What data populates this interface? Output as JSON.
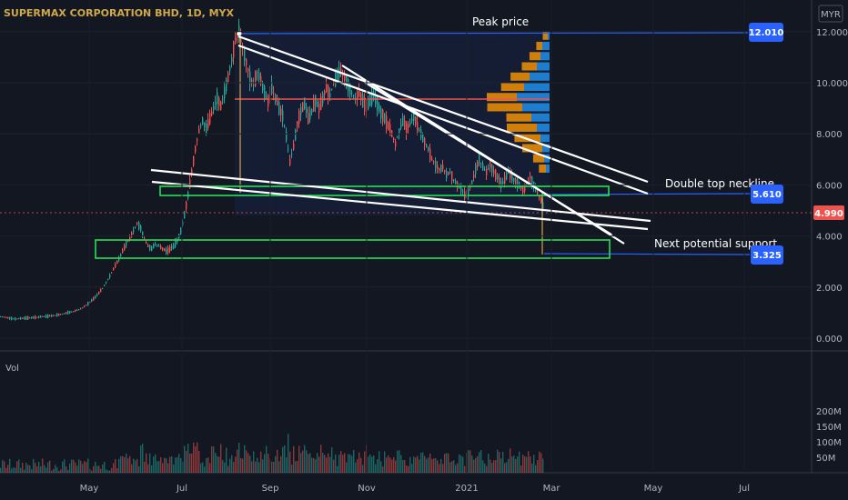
{
  "chart_data": [
    {
      "type": "candlestick",
      "title": "SUPERMAX CORPORATION BHD, 1D, MYX",
      "currency": "MYR",
      "y_ticks": [
        "0.000",
        "2.000",
        "4.000",
        "6.000",
        "8.000",
        "10.000",
        "12.000"
      ],
      "x_ticks": [
        "May",
        "Jul",
        "Sep",
        "Nov",
        "2021",
        "Mar",
        "May",
        "Jul"
      ],
      "ylim": [
        -0.2,
        13.0
      ],
      "price_path": [
        [
          0,
          0.85
        ],
        [
          8,
          0.8
        ],
        [
          16,
          0.75
        ],
        [
          24,
          0.78
        ],
        [
          32,
          0.8
        ],
        [
          40,
          0.82
        ],
        [
          48,
          0.85
        ],
        [
          56,
          0.88
        ],
        [
          64,
          0.92
        ],
        [
          72,
          0.98
        ],
        [
          80,
          1.05
        ],
        [
          88,
          1.15
        ],
        [
          96,
          1.35
        ],
        [
          104,
          1.6
        ],
        [
          112,
          1.95
        ],
        [
          118,
          2.3
        ],
        [
          124,
          2.7
        ],
        [
          130,
          3.1
        ],
        [
          134,
          3.4
        ],
        [
          138,
          3.7
        ],
        [
          142,
          3.9
        ],
        [
          146,
          4.2
        ],
        [
          150,
          4.5
        ],
        [
          154,
          4.3
        ],
        [
          158,
          3.9
        ],
        [
          162,
          3.6
        ],
        [
          166,
          3.5
        ],
        [
          170,
          3.7
        ],
        [
          174,
          3.6
        ],
        [
          178,
          3.5
        ],
        [
          182,
          3.4
        ],
        [
          186,
          3.5
        ],
        [
          190,
          3.6
        ],
        [
          194,
          3.8
        ],
        [
          198,
          4.2
        ],
        [
          202,
          4.8
        ],
        [
          206,
          5.6
        ],
        [
          210,
          6.5
        ],
        [
          214,
          7.4
        ],
        [
          218,
          8.1
        ],
        [
          222,
          8.5
        ],
        [
          226,
          8.2
        ],
        [
          230,
          8.6
        ],
        [
          234,
          9.0
        ],
        [
          238,
          9.4
        ],
        [
          242,
          9.1
        ],
        [
          246,
          9.6
        ],
        [
          250,
          10.2
        ],
        [
          254,
          10.9
        ],
        [
          258,
          11.7
        ],
        [
          262,
          11.95
        ],
        [
          266,
          11.4
        ],
        [
          270,
          10.8
        ],
        [
          274,
          10.2
        ],
        [
          278,
          9.9
        ],
        [
          282,
          10.4
        ],
        [
          286,
          10.1
        ],
        [
          290,
          9.6
        ],
        [
          294,
          9.3
        ],
        [
          298,
          9.8
        ],
        [
          302,
          9.4
        ],
        [
          306,
          9.0
        ],
        [
          310,
          8.7
        ],
        [
          314,
          7.9
        ],
        [
          318,
          6.9
        ],
        [
          322,
          7.5
        ],
        [
          326,
          8.4
        ],
        [
          330,
          8.9
        ],
        [
          334,
          9.2
        ],
        [
          338,
          8.6
        ],
        [
          342,
          8.9
        ],
        [
          346,
          9.3
        ],
        [
          350,
          9.0
        ],
        [
          354,
          9.4
        ],
        [
          358,
          9.8
        ],
        [
          362,
          9.5
        ],
        [
          366,
          10.0
        ],
        [
          370,
          10.3
        ],
        [
          374,
          10.5
        ],
        [
          378,
          10.2
        ],
        [
          382,
          9.9
        ],
        [
          386,
          9.6
        ],
        [
          390,
          9.4
        ],
        [
          394,
          9.6
        ],
        [
          398,
          9.3
        ],
        [
          402,
          9.0
        ],
        [
          406,
          9.3
        ],
        [
          410,
          9.5
        ],
        [
          414,
          9.2
        ],
        [
          418,
          8.8
        ],
        [
          422,
          8.6
        ],
        [
          426,
          8.3
        ],
        [
          430,
          8.0
        ],
        [
          434,
          7.6
        ],
        [
          438,
          8.1
        ],
        [
          442,
          8.5
        ],
        [
          446,
          8.2
        ],
        [
          450,
          8.4
        ],
        [
          454,
          8.7
        ],
        [
          458,
          8.3
        ],
        [
          462,
          8.0
        ],
        [
          466,
          7.7
        ],
        [
          470,
          7.4
        ],
        [
          474,
          7.0
        ],
        [
          478,
          6.8
        ],
        [
          482,
          6.6
        ],
        [
          486,
          6.7
        ],
        [
          490,
          6.4
        ],
        [
          494,
          6.5
        ],
        [
          498,
          6.2
        ],
        [
          502,
          6.0
        ],
        [
          506,
          5.9
        ],
        [
          510,
          5.6
        ],
        [
          514,
          5.7
        ],
        [
          518,
          6.1
        ],
        [
          522,
          6.6
        ],
        [
          526,
          7.0
        ],
        [
          530,
          6.7
        ],
        [
          534,
          6.5
        ],
        [
          538,
          6.8
        ],
        [
          542,
          6.5
        ],
        [
          546,
          6.3
        ],
        [
          550,
          6.0
        ],
        [
          554,
          6.2
        ],
        [
          558,
          6.5
        ],
        [
          562,
          6.3
        ],
        [
          566,
          6.1
        ],
        [
          570,
          6.0
        ],
        [
          574,
          5.8
        ],
        [
          578,
          6.0
        ],
        [
          582,
          6.3
        ],
        [
          586,
          6.0
        ],
        [
          590,
          5.7
        ],
        [
          594,
          5.4
        ],
        [
          598,
          5.0
        ]
      ],
      "annotations": [
        {
          "text": "Peak price",
          "value": "12.010"
        },
        {
          "text": "Double top neckline",
          "value": "5.610"
        },
        {
          "text": "Next potential support",
          "value": "3.325"
        }
      ],
      "last_price": "4.990",
      "volume": {
        "label": "Vol",
        "y_ticks": [
          "50M",
          "100M",
          "150M",
          "200M"
        ]
      }
    }
  ],
  "colors": {
    "background": "#131722",
    "up": "#26a69a",
    "down": "#ef5350",
    "badge": "#2962ff",
    "last_badge": "#ef5350",
    "zone": "#26e05a",
    "trendline": "#ffffff",
    "vp_up": "#2196f3",
    "vp_down": "#ff9800",
    "title": "#d1a84a"
  }
}
